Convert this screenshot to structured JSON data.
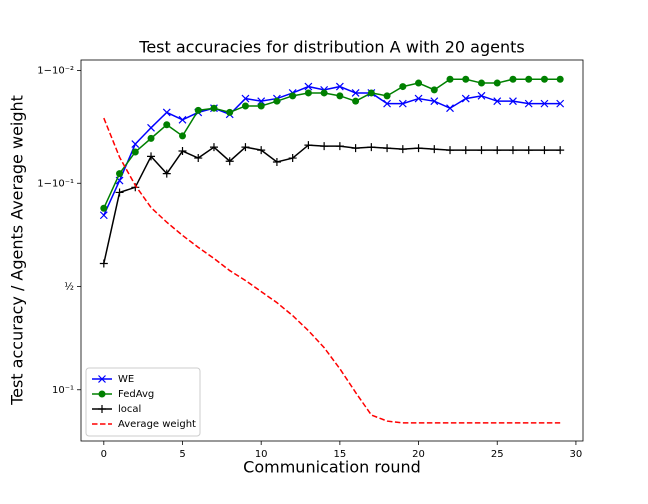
{
  "chart_data": {
    "type": "line",
    "title": "Test accuracies for distribution A with 20 agents",
    "xlabel": "Communication round",
    "ylabel": "Test accuracy / Agents Average weight",
    "yscale": "logit",
    "x": [
      0,
      1,
      2,
      3,
      4,
      5,
      6,
      7,
      8,
      9,
      10,
      11,
      12,
      13,
      14,
      15,
      16,
      17,
      18,
      19,
      20,
      21,
      22,
      23,
      24,
      25,
      26,
      27,
      28,
      29
    ],
    "xlim": [
      -1.45,
      30.45
    ],
    "xticks": [
      0,
      5,
      10,
      15,
      20,
      25,
      30
    ],
    "ylim": [
      0.036,
      0.992
    ],
    "yticks": [
      {
        "value": 0.99,
        "label": "1−10⁻²"
      },
      {
        "value": 0.9,
        "label": "1−10⁻¹"
      },
      {
        "value": 0.5,
        "label": "½"
      },
      {
        "value": 0.1,
        "label": "10⁻¹"
      }
    ],
    "legend": "lower left",
    "series": [
      {
        "name": "WE",
        "color": "#0000ff",
        "marker": "x",
        "dash": false,
        "values": [
          0.82,
          0.905,
          0.954,
          0.967,
          0.976,
          0.972,
          0.976,
          0.978,
          0.975,
          0.982,
          0.981,
          0.982,
          0.984,
          0.986,
          0.985,
          0.986,
          0.984,
          0.984,
          0.98,
          0.98,
          0.982,
          0.981,
          0.978,
          0.982,
          0.983,
          0.981,
          0.981,
          0.98,
          0.98,
          0.98
        ]
      },
      {
        "name": "FedAvg",
        "color": "#008000",
        "marker": "o",
        "dash": false,
        "values": [
          0.841,
          0.917,
          0.946,
          0.959,
          0.969,
          0.961,
          0.977,
          0.978,
          0.976,
          0.979,
          0.979,
          0.981,
          0.983,
          0.984,
          0.984,
          0.983,
          0.981,
          0.984,
          0.983,
          0.986,
          0.987,
          0.985,
          0.988,
          0.988,
          0.987,
          0.987,
          0.988,
          0.988,
          0.988,
          0.988
        ]
      },
      {
        "name": "local",
        "color": "#000000",
        "marker": "+",
        "dash": false,
        "values": [
          0.62,
          0.881,
          0.892,
          0.941,
          0.917,
          0.947,
          0.939,
          0.951,
          0.935,
          0.951,
          0.948,
          0.934,
          0.939,
          0.953,
          0.952,
          0.952,
          0.95,
          0.951,
          0.95,
          0.949,
          0.95,
          0.949,
          0.948,
          0.948,
          0.948,
          0.948,
          0.948,
          0.948,
          0.948,
          0.948
        ]
      },
      {
        "name": "Average weight",
        "color": "#ff0000",
        "marker": "none",
        "dash": true,
        "values": [
          0.973,
          0.94,
          0.896,
          0.843,
          0.797,
          0.748,
          0.697,
          0.645,
          0.584,
          0.532,
          0.473,
          0.415,
          0.35,
          0.281,
          0.214,
          0.148,
          0.095,
          0.061,
          0.054,
          0.052,
          0.052,
          0.052,
          0.052,
          0.052,
          0.052,
          0.052,
          0.052,
          0.052,
          0.052,
          0.052
        ]
      }
    ]
  }
}
